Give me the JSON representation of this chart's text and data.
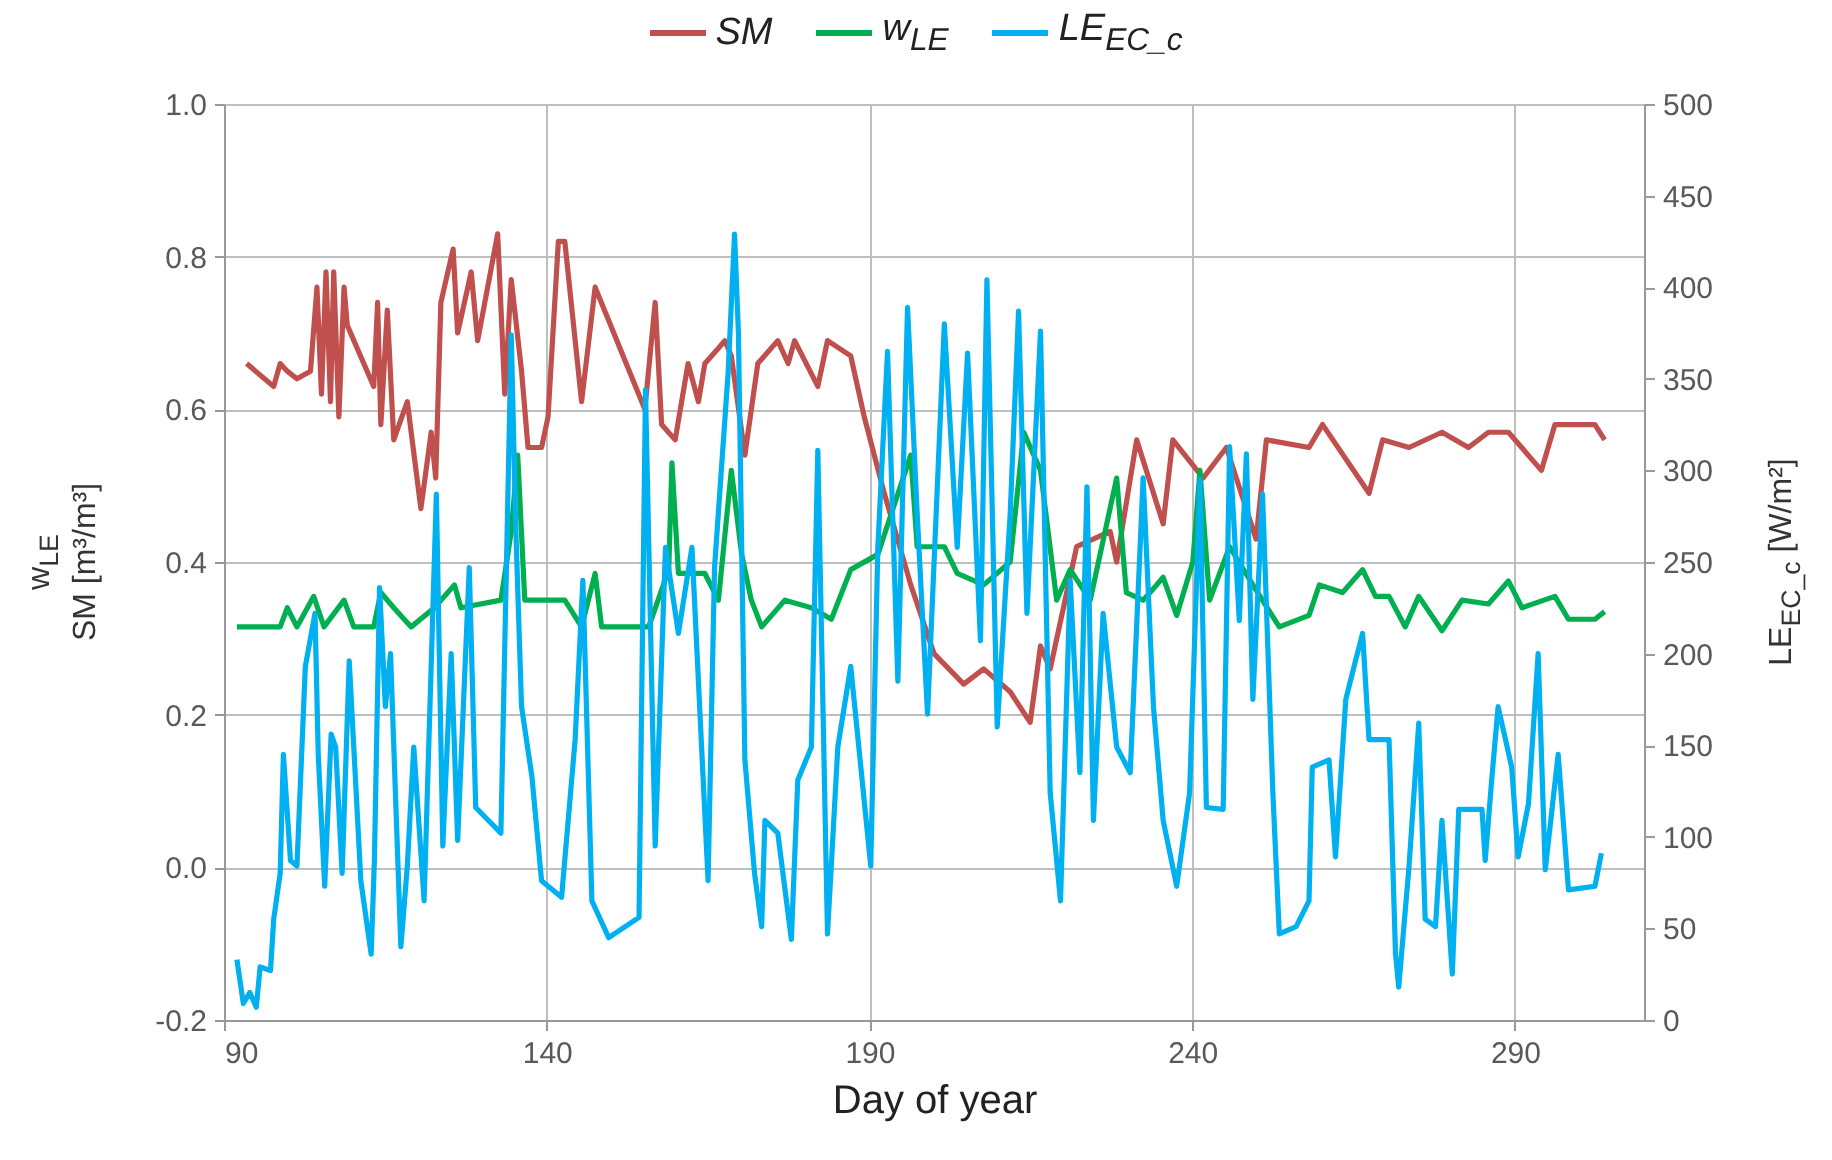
{
  "chart_data": {
    "type": "line",
    "xlabel": "Day of year",
    "ylabel": "w$_{LE}$\nSM [m³/m³]",
    "y2label": "LE$_{EC_c}$ [W/m²]",
    "legend": "top",
    "grid": true,
    "line_style": "solid",
    "xlim": [
      90,
      310
    ],
    "xticks": [
      90,
      140,
      190,
      240,
      290
    ],
    "ylim": [
      -0.2,
      1.0
    ],
    "yticks": [
      {
        "value": -0.2,
        "label": "-0.2"
      },
      {
        "value": 0,
        "label": "0.0"
      },
      {
        "value": 0.2,
        "label": "0.2"
      },
      {
        "value": 0.4,
        "label": "0.4"
      },
      {
        "value": 0.6,
        "label": "0.6"
      },
      {
        "value": 0.8,
        "label": "0.8"
      },
      {
        "value": 1.0,
        "label": "1.0"
      }
    ],
    "y2lim": [
      0,
      500
    ],
    "y2ticks": [
      0,
      50,
      100,
      150,
      200,
      250,
      300,
      350,
      400,
      450,
      500
    ],
    "series": [
      {
        "name": "SM",
        "color": "#c0504d",
        "x": [
          93.5,
          97.7,
          98.7,
          99.8,
          101.3,
          103.4,
          104.4,
          105.1,
          105.8,
          106.5,
          107,
          107.8,
          108.6,
          109.1,
          113.2,
          113.8,
          114.3,
          115.3,
          116.3,
          118.4,
          120.5,
          122.1,
          122.8,
          123.6,
          125.5,
          126.2,
          128.3,
          129.3,
          132.4,
          133.5,
          134.5,
          136.1,
          137.1,
          139.2,
          140.2,
          141.8,
          142.8,
          145.4,
          147.5,
          155.2,
          156.8,
          157.8,
          159.9,
          161.9,
          163.5,
          164.5,
          166.6,
          167.6,
          168.6,
          170.7,
          172.7,
          175.8,
          177.4,
          178.4,
          182,
          183.5,
          187.1,
          189.2,
          192.3,
          196.4,
          200,
          204.6,
          207.7,
          211.8,
          214.9,
          216.5,
          218,
          222.1,
          227.3,
          228.3,
          231.4,
          235.5,
          237,
          241.7,
          245.3,
          249.9,
          251.5,
          258.1,
          260.2,
          267.4,
          269.5,
          273.6,
          278.7,
          282.8,
          285.9,
          289,
          294.1,
          296.2,
          302.4,
          303.9
        ],
        "values": [
          0.66,
          0.63,
          0.66,
          0.65,
          0.64,
          0.65,
          0.76,
          0.62,
          0.78,
          0.61,
          0.78,
          0.59,
          0.76,
          0.71,
          0.63,
          0.74,
          0.58,
          0.73,
          0.56,
          0.61,
          0.47,
          0.57,
          0.51,
          0.74,
          0.81,
          0.7,
          0.78,
          0.69,
          0.83,
          0.62,
          0.77,
          0.65,
          0.55,
          0.55,
          0.59,
          0.82,
          0.82,
          0.61,
          0.76,
          0.6,
          0.74,
          0.58,
          0.56,
          0.66,
          0.61,
          0.66,
          0.68,
          0.69,
          0.67,
          0.54,
          0.66,
          0.69,
          0.66,
          0.69,
          0.63,
          0.69,
          0.67,
          0.59,
          0.49,
          0.37,
          0.28,
          0.24,
          0.26,
          0.23,
          0.19,
          0.29,
          0.26,
          0.42,
          0.44,
          0.4,
          0.56,
          0.45,
          0.56,
          0.51,
          0.55,
          0.43,
          0.56,
          0.55,
          0.58,
          0.49,
          0.56,
          0.55,
          0.57,
          0.55,
          0.57,
          0.57,
          0.52,
          0.58,
          0.58,
          0.56
        ]
      },
      {
        "name": "w$_{LE}$",
        "color": "#00b050",
        "x": [
          92,
          98.7,
          99.8,
          101.3,
          103.9,
          105.5,
          108.6,
          110.1,
          113.2,
          114.3,
          116.3,
          119,
          122.6,
          125.7,
          126.7,
          132.9,
          134.5,
          135.5,
          136.6,
          142.8,
          145.4,
          147.5,
          148.5,
          155.8,
          158.9,
          159.4,
          160.4,
          164.5,
          166.6,
          168.6,
          170.2,
          171.7,
          173.3,
          176.9,
          181,
          184.1,
          187.1,
          191.3,
          196.4,
          197.4,
          201.6,
          203.6,
          207.7,
          211.8,
          213.9,
          216.5,
          219,
          221.1,
          224.2,
          228.3,
          229.8,
          232.4,
          234.5,
          235.5,
          237.6,
          240.1,
          241.2,
          242.7,
          245.8,
          249.4,
          253.5,
          258.1,
          259.7,
          263.3,
          266.4,
          268.4,
          270.5,
          273,
          275.1,
          278.7,
          281.8,
          285.9,
          289,
          291.1,
          296.2,
          298.3,
          302.4,
          303.9
        ],
        "values": [
          0.315,
          0.315,
          0.34,
          0.315,
          0.355,
          0.315,
          0.35,
          0.315,
          0.315,
          0.36,
          0.34,
          0.315,
          0.34,
          0.37,
          0.34,
          0.35,
          0.44,
          0.54,
          0.35,
          0.35,
          0.315,
          0.385,
          0.315,
          0.315,
          0.39,
          0.53,
          0.385,
          0.385,
          0.35,
          0.52,
          0.41,
          0.35,
          0.315,
          0.35,
          0.34,
          0.325,
          0.39,
          0.41,
          0.54,
          0.42,
          0.42,
          0.385,
          0.37,
          0.4,
          0.57,
          0.52,
          0.35,
          0.39,
          0.35,
          0.51,
          0.36,
          0.35,
          0.37,
          0.38,
          0.33,
          0.4,
          0.52,
          0.35,
          0.42,
          0.37,
          0.315,
          0.33,
          0.37,
          0.36,
          0.39,
          0.355,
          0.355,
          0.315,
          0.355,
          0.31,
          0.35,
          0.345,
          0.375,
          0.34,
          0.355,
          0.325,
          0.325,
          0.335
        ]
      },
      {
        "name": "LE$_{EC_c}$",
        "color": "#00b0f0",
        "axis": "y2",
        "x": [
          92,
          93,
          94,
          95,
          95.6,
          97.2,
          97.7,
          98.7,
          99.2,
          100.3,
          101.3,
          102.6,
          104.1,
          104.6,
          105.6,
          106.6,
          107.3,
          108.3,
          109.4,
          111.2,
          112.8,
          113.3,
          114.1,
          115,
          115.8,
          117.4,
          118.4,
          119.4,
          121,
          122.9,
          123.9,
          125.2,
          126.2,
          128,
          129,
          132.9,
          134.5,
          135.2,
          136.1,
          137.7,
          139.2,
          142.3,
          144.4,
          145.6,
          147,
          149.6,
          154.3,
          155.3,
          156.8,
          158.4,
          160.4,
          162.5,
          163.5,
          165,
          166,
          168.1,
          169.1,
          169.7,
          170.7,
          172.2,
          173.3,
          173.8,
          175.8,
          177.9,
          178.9,
          181,
          182,
          183.5,
          185.1,
          187.1,
          190.2,
          191.3,
          192.8,
          194.4,
          195.9,
          197.4,
          199,
          201.6,
          203.6,
          205.2,
          207.2,
          208.2,
          209.8,
          211.8,
          213.1,
          214.4,
          216.5,
          218,
          219.6,
          221.1,
          222.6,
          223.7,
          224.7,
          226.2,
          228.3,
          230.4,
          232.4,
          234,
          235.5,
          237.6,
          239.6,
          241.2,
          242.2,
          244.8,
          245.8,
          247.3,
          248.4,
          249.4,
          250.9,
          252.5,
          253.5,
          256.1,
          258.1,
          258.6,
          261.2,
          262.2,
          263.8,
          265.3,
          266.4,
          267.4,
          270.5,
          271.5,
          272,
          273.6,
          275.1,
          276.1,
          277.7,
          278.7,
          280.3,
          281.3,
          284.9,
          285.4,
          286.4,
          287.4,
          289.5,
          290.5,
          292.1,
          293.6,
          294.7,
          296.7,
          298.3,
          302.4,
          303.4
        ],
        "values": [
          33,
          9,
          15,
          7,
          29,
          27,
          55,
          80,
          145,
          87,
          84,
          193,
          222,
          145,
          73,
          156,
          149,
          80,
          196,
          76,
          36,
          87,
          236,
          171,
          200,
          40,
          84,
          149,
          65,
          287,
          95,
          200,
          98,
          247,
          116,
          102,
          374,
          269,
          171,
          133,
          76,
          67,
          153,
          240,
          65,
          45,
          56,
          344,
          95,
          258,
          211,
          258,
          185,
          76,
          247,
          353,
          429,
          375,
          142,
          80,
          51,
          109,
          102,
          44,
          131,
          149,
          311,
          47,
          149,
          193,
          84,
          258,
          365,
          185,
          389,
          276,
          167,
          380,
          258,
          364,
          207,
          404,
          160,
          276,
          387,
          222,
          376,
          124,
          65,
          240,
          135,
          291,
          109,
          222,
          149,
          135,
          296,
          171,
          109,
          73,
          124,
          295,
          116,
          115,
          313,
          218,
          309,
          175,
          287,
          124,
          47,
          51,
          65,
          138,
          142,
          89,
          175,
          196,
          211,
          153,
          153,
          36,
          18,
          84,
          162,
          55,
          51,
          109,
          25,
          115,
          115,
          87,
          131,
          171,
          138,
          89,
          118,
          200,
          82,
          145,
          71,
          73,
          91
        ]
      }
    ]
  }
}
